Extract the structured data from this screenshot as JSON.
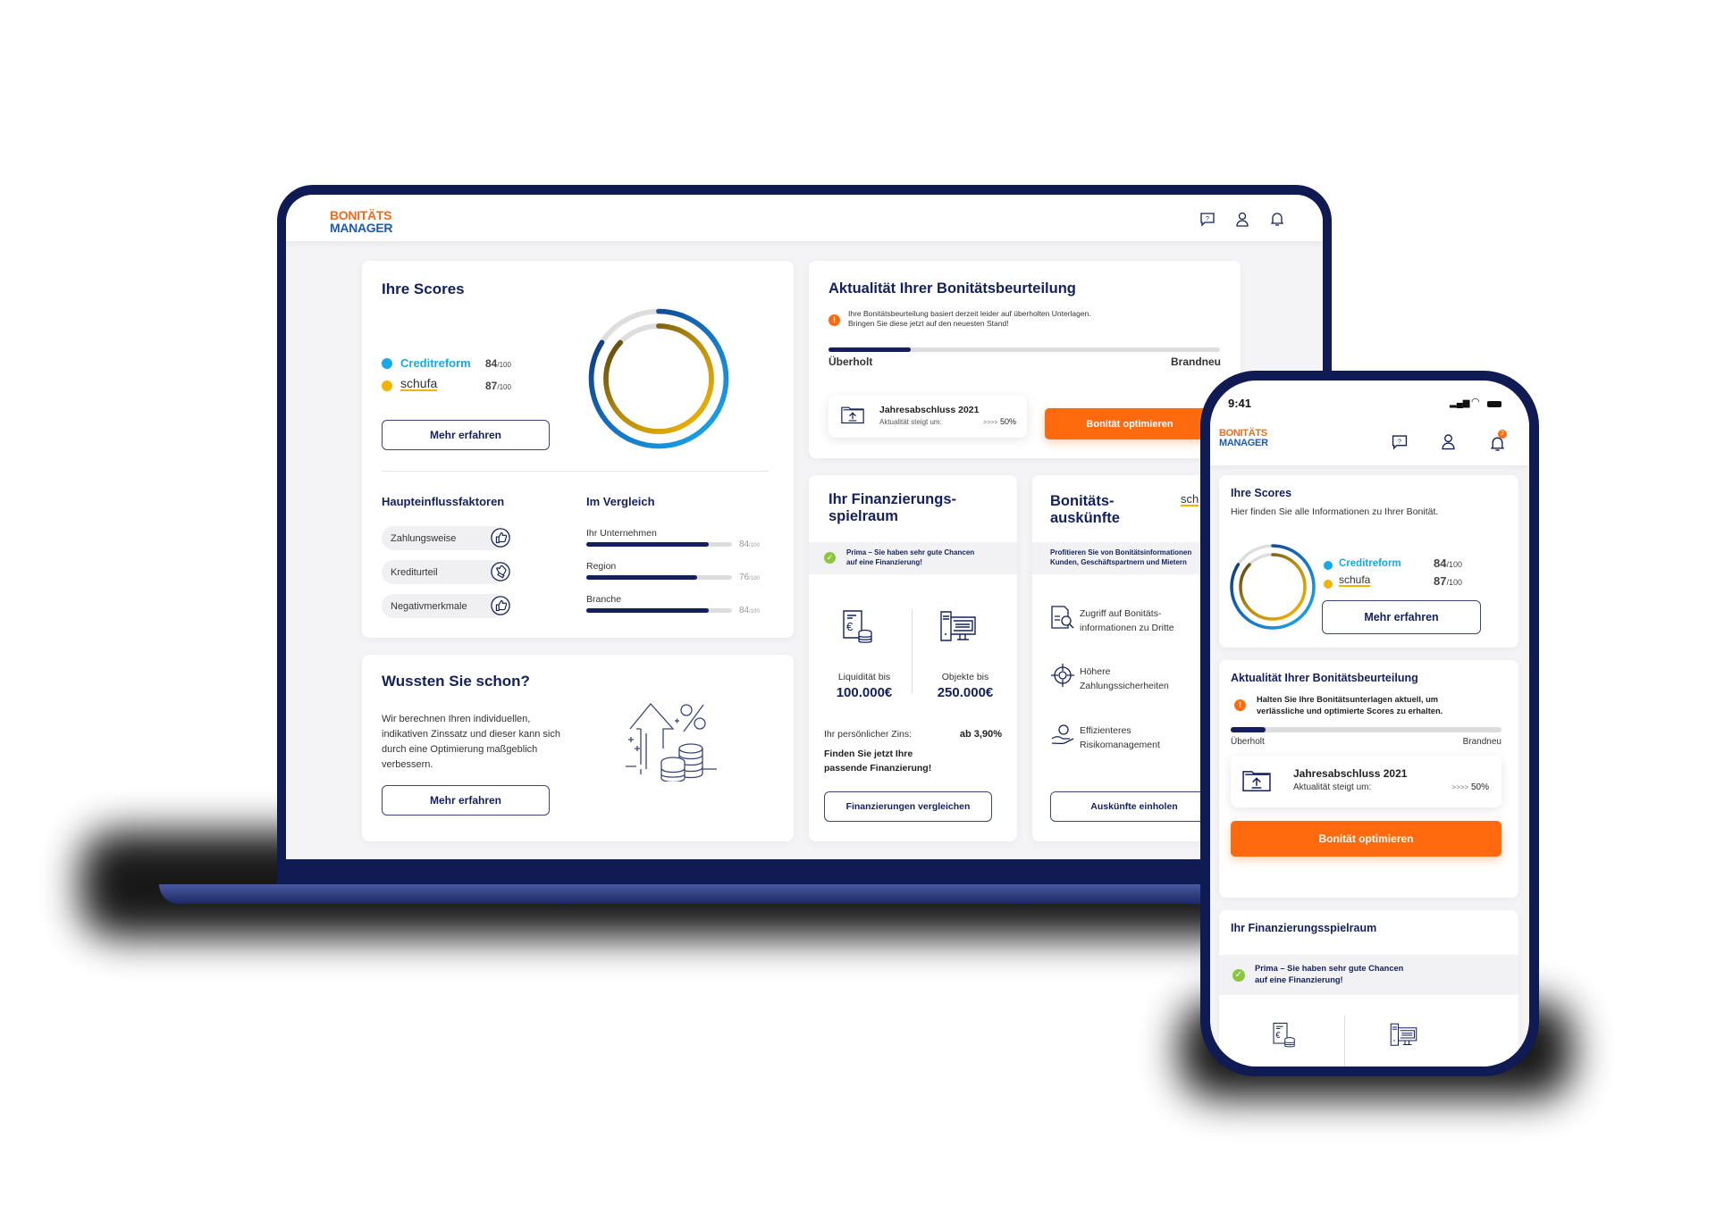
{
  "colors": {
    "navy": "#14205e",
    "orange": "#ff6a0f",
    "creditreform": "#17a8e8",
    "schufa": "#f2b400",
    "success": "#8cc63f"
  },
  "desktop": {
    "logo": {
      "line1": "BONITÄTS",
      "line2": "MANAGER"
    },
    "header_icons": [
      "help-chat-icon",
      "user-icon",
      "bell-icon"
    ],
    "scores": {
      "title": "Ihre Scores",
      "providers": [
        {
          "name": "Creditreform",
          "score": "84",
          "max": "/100",
          "value": 84
        },
        {
          "name": "schufa",
          "score": "87",
          "max": "/100",
          "value": 87
        }
      ],
      "button": "Mehr erfahren"
    },
    "factors": {
      "title": "Haupteinflussfaktoren",
      "items": [
        {
          "label": "Zahlungsweise",
          "icon": "thumbs-up-icon"
        },
        {
          "label": "Krediturteil",
          "icon": "thumbs-sideways-icon"
        },
        {
          "label": "Negativmerkmale",
          "icon": "thumbs-up-icon"
        }
      ]
    },
    "comparison": {
      "title": "Im Vergleich",
      "items": [
        {
          "label": "Ihr Unternehmen",
          "value": "84",
          "max": "/100",
          "pct": 84
        },
        {
          "label": "Region",
          "value": "76",
          "max": "/100",
          "pct": 76
        },
        {
          "label": "Branche",
          "value": "84",
          "max": "/100",
          "pct": 84
        }
      ]
    },
    "did_you_know": {
      "title": "Wussten Sie schon?",
      "text": "Wir berechnen Ihren individuellen, indikativen Zinssatz und dieser kann sich durch eine Optimierung maßgeblich verbessern.",
      "button": "Mehr erfahren"
    },
    "freshness": {
      "title": "Aktualität Ihrer Bonitätsbeurteilung",
      "warning_line1": "Ihre Bonitätsbeurteilung basiert derzeit leider auf überholten Unterlagen.",
      "warning_line2": "Bringen Sie diese jetzt auf den neuesten Stand!",
      "progress": 0.21,
      "left_label": "Überholt",
      "right_label": "Brandneu",
      "document": {
        "title": "Jahresabschluss 2021",
        "subtitle": "Aktualität steigt um:",
        "arrows": ">>>>",
        "value": "50%"
      },
      "button": "Bonität optimieren"
    },
    "financing": {
      "title_line1": "Ihr Finanzierungs-",
      "title_line2": "spielraum",
      "notice_line1": "Prima – Sie haben sehr gute Chancen",
      "notice_line2": "auf eine Finanzierung!",
      "items": [
        {
          "label": "Liquidität bis",
          "value": "100.000€"
        },
        {
          "label": "Objekte bis",
          "value": "250.000€"
        }
      ],
      "interest_label": "Ihr persönlicher Zins:",
      "interest_value": "ab 3,90%",
      "cta_line1": "Finden Sie jetzt Ihre",
      "cta_line2": "passende Finanzierung!",
      "button": "Finanzierungen vergleichen"
    },
    "reports": {
      "title_line1": "Bonitäts-",
      "title_line2": "auskünfte",
      "brand": "sch",
      "notice_line1": "Profitieren Sie von Bonitätsinformationen",
      "notice_line2": "Kunden, Geschäftspartnern und Mietern",
      "features": [
        {
          "line1": "Zugriff auf Bonitäts-",
          "line2": "informationen zu Dritte"
        },
        {
          "line1": "Höhere",
          "line2": "Zahlungssicherheiten"
        },
        {
          "line1": "Effizienteres",
          "line2": "Risikomanagement"
        }
      ],
      "button": "Auskünfte einholen"
    }
  },
  "phone": {
    "time": "9:41",
    "logo": {
      "line1": "BONITÄTS",
      "line2": "MANAGER"
    },
    "notification_count": "2",
    "scores": {
      "title": "Ihre Scores",
      "subtitle": "Hier finden Sie alle Informationen zu Ihrer Bonität.",
      "providers": [
        {
          "name": "Creditreform",
          "score": "84",
          "max": "/100"
        },
        {
          "name": "schufa",
          "score": "87",
          "max": "/100"
        }
      ],
      "button": "Mehr erfahren"
    },
    "freshness": {
      "title": "Aktualität Ihrer Bonitätsbeurteilung",
      "warning_line1": "Halten Sie Ihre Bonitätsunterlagen aktuell, um",
      "warning_line2": "verlässliche und optimierte Scores zu erhalten.",
      "progress": 0.13,
      "left_label": "Überholt",
      "right_label": "Brandneu",
      "document": {
        "title": "Jahresabschluss 2021",
        "subtitle": "Aktualität steigt um:",
        "arrows": ">>>>",
        "value": "50%"
      },
      "button": "Bonität optimieren"
    },
    "financing": {
      "title": "Ihr Finanzierungsspielraum",
      "notice_line1": "Prima – Sie haben sehr gute Chancen",
      "notice_line2": "auf eine Finanzierung!"
    }
  }
}
